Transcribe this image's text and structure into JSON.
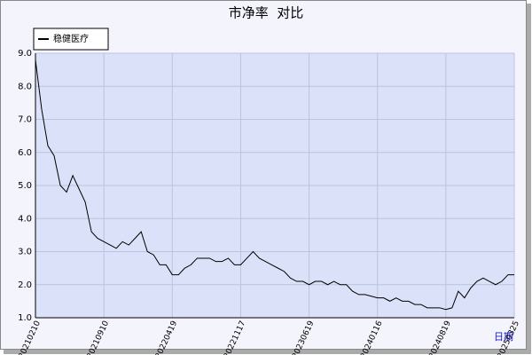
{
  "chart_data": {
    "type": "line",
    "title": "市净率  对比",
    "x_label": "日期",
    "categories": [
      "20210210",
      null,
      null,
      null,
      null,
      null,
      null,
      null,
      null,
      null,
      null,
      "20210910",
      null,
      null,
      null,
      null,
      null,
      null,
      null,
      null,
      null,
      null,
      "20220419",
      null,
      null,
      null,
      null,
      null,
      null,
      null,
      null,
      null,
      null,
      "20221117",
      null,
      null,
      null,
      null,
      null,
      null,
      null,
      null,
      null,
      null,
      "20230619",
      null,
      null,
      null,
      null,
      null,
      null,
      null,
      null,
      null,
      null,
      "20240116",
      null,
      null,
      null,
      null,
      null,
      null,
      null,
      null,
      null,
      null,
      "20240819",
      null,
      null,
      null,
      null,
      null,
      null,
      null,
      null,
      null,
      null,
      "20250325"
    ],
    "series": [
      {
        "name": "稳健医疗",
        "color": "#000000",
        "values": [
          8.8,
          7.3,
          6.2,
          5.9,
          5.0,
          4.8,
          5.3,
          4.9,
          4.5,
          3.6,
          3.4,
          3.3,
          3.2,
          3.1,
          3.3,
          3.2,
          3.4,
          3.6,
          3.0,
          2.9,
          2.6,
          2.6,
          2.3,
          2.3,
          2.5,
          2.6,
          2.8,
          2.8,
          2.8,
          2.7,
          2.7,
          2.8,
          2.6,
          2.6,
          2.8,
          3.0,
          2.8,
          2.7,
          2.6,
          2.5,
          2.4,
          2.2,
          2.1,
          2.1,
          2.0,
          2.1,
          2.1,
          2.0,
          2.1,
          2.0,
          2.0,
          1.8,
          1.7,
          1.7,
          1.65,
          1.6,
          1.6,
          1.5,
          1.6,
          1.5,
          1.5,
          1.4,
          1.4,
          1.3,
          1.3,
          1.3,
          1.25,
          1.3,
          1.8,
          1.6,
          1.9,
          2.1,
          2.2,
          2.1,
          2.0,
          2.1,
          2.3,
          2.3
        ]
      }
    ],
    "ylim": [
      1,
      9
    ],
    "yticks": [
      {
        "value": 1,
        "label": "1.0"
      },
      {
        "value": 2,
        "label": "2.0"
      },
      {
        "value": 3,
        "label": "3.0"
      },
      {
        "value": 4,
        "label": "4.0"
      },
      {
        "value": 5,
        "label": "5.0"
      },
      {
        "value": 6,
        "label": "6.0"
      },
      {
        "value": 7,
        "label": "7.0"
      },
      {
        "value": 8,
        "label": "8.0"
      },
      {
        "value": 9,
        "label": "9.0"
      }
    ],
    "grid": true
  }
}
